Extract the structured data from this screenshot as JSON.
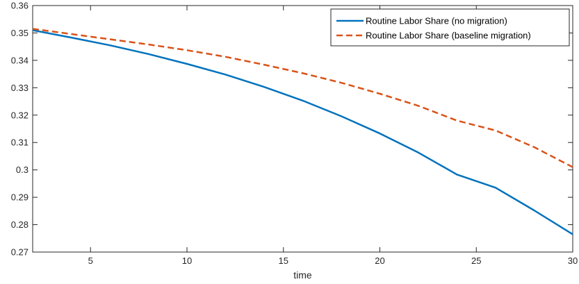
{
  "chart_data": {
    "type": "line",
    "title": "",
    "xlabel": "time",
    "ylabel": "",
    "xlim": [
      2,
      30
    ],
    "ylim": [
      0.27,
      0.36
    ],
    "xticks": [
      5,
      10,
      15,
      20,
      25,
      30
    ],
    "yticks": [
      0.27,
      0.28,
      0.29,
      0.3,
      0.31,
      0.32,
      0.33,
      0.34,
      0.35,
      0.36
    ],
    "xtick_labels": [
      "5",
      "10",
      "15",
      "20",
      "25",
      "30"
    ],
    "ytick_labels": [
      "0.27",
      "0.28",
      "0.29",
      "0.3",
      "0.31",
      "0.32",
      "0.33",
      "0.34",
      "0.35",
      "0.36"
    ],
    "grid": false,
    "legend_position": "top-right",
    "series": [
      {
        "name": "Routine Labor Share (no migration)",
        "color": "#0072BD",
        "style": "solid",
        "x": [
          2,
          4,
          6,
          8,
          10,
          12,
          14,
          16,
          18,
          20,
          22,
          24,
          26,
          28,
          30
        ],
        "y": [
          0.351,
          0.3483,
          0.3455,
          0.3423,
          0.3387,
          0.3348,
          0.3303,
          0.3253,
          0.3196,
          0.3133,
          0.3063,
          0.2983,
          0.2935,
          0.2852,
          0.2765
        ]
      },
      {
        "name": "Routine Labor Share (baseline migration)",
        "color": "#D95319",
        "style": "dashed",
        "x": [
          2,
          4,
          6,
          8,
          10,
          12,
          14,
          16,
          18,
          20,
          22,
          24,
          26,
          28,
          30
        ],
        "y": [
          0.3515,
          0.3496,
          0.3477,
          0.3458,
          0.3437,
          0.3413,
          0.3384,
          0.3353,
          0.3318,
          0.3278,
          0.3234,
          0.318,
          0.3144,
          0.3083,
          0.301
        ]
      }
    ]
  }
}
